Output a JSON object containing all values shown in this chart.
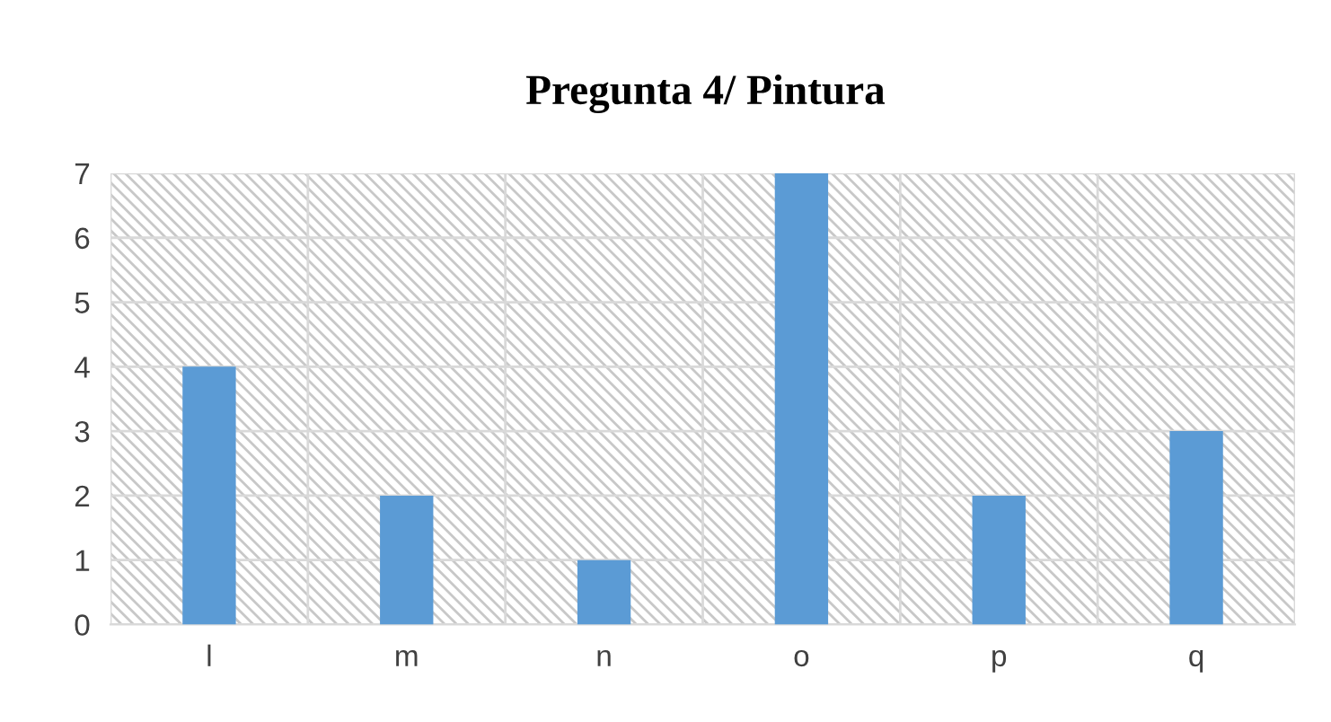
{
  "chart_data": {
    "type": "bar",
    "title": "Pregunta 4/ Pintura",
    "categories": [
      "l",
      "m",
      "n",
      "o",
      "p",
      "q"
    ],
    "values": [
      4,
      2,
      1,
      7,
      2,
      3
    ],
    "color": "#5b9bd5",
    "ylim": [
      0,
      7
    ],
    "yticks": [
      0,
      1,
      2,
      3,
      4,
      5,
      6,
      7
    ],
    "grid": true,
    "legend": false
  }
}
